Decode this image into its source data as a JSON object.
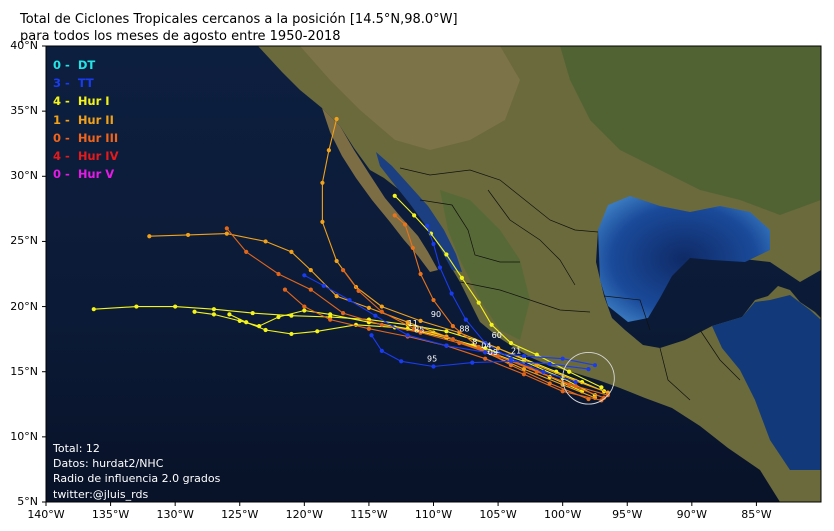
{
  "title": {
    "line1": "Total de Ciclones Tropicales cercanos a la posición [14.5°N,98.0°W]",
    "line2": "para todos los meses de agosto entre 1950-2018"
  },
  "axes": {
    "lon_range": [
      -140,
      -80
    ],
    "lat_range": [
      5,
      40
    ],
    "lat_ticks": [
      {
        "value": 40,
        "label": "40°N"
      },
      {
        "value": 35,
        "label": "35°N"
      },
      {
        "value": 30,
        "label": "30°N"
      },
      {
        "value": 25,
        "label": "25°N"
      },
      {
        "value": 20,
        "label": "20°N"
      },
      {
        "value": 15,
        "label": "15°N"
      },
      {
        "value": 10,
        "label": "10°N"
      },
      {
        "value": 5,
        "label": "5°N"
      }
    ],
    "lon_ticks": [
      {
        "value": -140,
        "label": "140°W"
      },
      {
        "value": -135,
        "label": "135°W"
      },
      {
        "value": -130,
        "label": "130°W"
      },
      {
        "value": -125,
        "label": "125°W"
      },
      {
        "value": -120,
        "label": "120°W"
      },
      {
        "value": -115,
        "label": "115°W"
      },
      {
        "value": -110,
        "label": "110°W"
      },
      {
        "value": -105,
        "label": "105°W"
      },
      {
        "value": -100,
        "label": "100°W"
      },
      {
        "value": -95,
        "label": "95°W"
      },
      {
        "value": -90,
        "label": "90°W"
      },
      {
        "value": -85,
        "label": "85°W"
      }
    ]
  },
  "legend": [
    {
      "count": "0",
      "label": "DT",
      "color": "#22e6e6"
    },
    {
      "count": "3",
      "label": "TT",
      "color": "#1a3cf0"
    },
    {
      "count": "4",
      "label": "Hur I",
      "color": "#f4f41a"
    },
    {
      "count": "1",
      "label": "Hur II",
      "color": "#f2a21a"
    },
    {
      "count": "0",
      "label": "Hur III",
      "color": "#f2641a"
    },
    {
      "count": "4",
      "label": "Hur IV",
      "color": "#e61a1a"
    },
    {
      "count": "0",
      "label": "Hur V",
      "color": "#e61ae6"
    }
  ],
  "info": {
    "total": "Total: 12",
    "source": "Datos: hurdat2/NHC",
    "radius": "Radio de influencia 2.0 grados",
    "credit": "twitter:@jluis_rds"
  },
  "influence_circle": {
    "lon": -98.0,
    "lat": 14.5,
    "radius_deg": 2.0
  },
  "track_labels": [
    {
      "text": "90",
      "lon": -110.2,
      "lat": 19.2
    },
    {
      "text": "11",
      "lon": -112.0,
      "lat": 18.5
    },
    {
      "text": "85",
      "lon": -111.5,
      "lat": 18.0
    },
    {
      "text": "88",
      "lon": -108.0,
      "lat": 18.1
    },
    {
      "text": "60",
      "lon": -105.5,
      "lat": 17.6
    },
    {
      "text": "8",
      "lon": -107.0,
      "lat": 17.1
    },
    {
      "text": "04",
      "lon": -106.3,
      "lat": 16.8
    },
    {
      "text": "09",
      "lon": -105.8,
      "lat": 16.3
    },
    {
      "text": "21",
      "lon": -104.0,
      "lat": 16.4
    },
    {
      "text": "95",
      "lon": -110.5,
      "lat": 15.8
    }
  ],
  "tracks": [
    {
      "id": "yellow-west-long",
      "color": "#f4f41a",
      "points": [
        [
          -96.8,
          13.5
        ],
        [
          -98.5,
          14.2
        ],
        [
          -100.5,
          15.0
        ],
        [
          -103,
          16.0
        ],
        [
          -106,
          17.2
        ],
        [
          -109,
          18.1
        ],
        [
          -112,
          18.6
        ],
        [
          -115,
          19.0
        ],
        [
          -118,
          19.2
        ],
        [
          -121,
          19.3
        ],
        [
          -124,
          19.5
        ],
        [
          -127,
          19.8
        ],
        [
          -130,
          20.0
        ],
        [
          -133,
          20.0
        ],
        [
          -136.3,
          19.8
        ]
      ]
    },
    {
      "id": "yellow-loop",
      "color": "#f4f41a",
      "points": [
        [
          -97.5,
          13.2
        ],
        [
          -100,
          14.5
        ],
        [
          -103,
          15.8
        ],
        [
          -106,
          16.8
        ],
        [
          -109,
          17.6
        ],
        [
          -112,
          18.3
        ],
        [
          -115,
          18.8
        ],
        [
          -118,
          19.4
        ],
        [
          -120,
          19.7
        ],
        [
          -122,
          19.2
        ],
        [
          -123.5,
          18.5
        ],
        [
          -125,
          18.9
        ],
        [
          -127,
          19.4
        ],
        [
          -128.5,
          19.6
        ]
      ]
    },
    {
      "id": "yellow-south-loop",
      "color": "#f4f41a",
      "points": [
        [
          -98.5,
          13.5
        ],
        [
          -101,
          14.6
        ],
        [
          -104,
          15.9
        ],
        [
          -107,
          17.0
        ],
        [
          -110,
          18.0
        ],
        [
          -113,
          18.4
        ],
        [
          -116,
          18.6
        ],
        [
          -119,
          18.1
        ],
        [
          -121,
          17.9
        ],
        [
          -123,
          18.2
        ],
        [
          -124.5,
          18.8
        ],
        [
          -125.8,
          19.4
        ]
      ]
    },
    {
      "id": "yellow-baja",
      "color": "#f4f41a",
      "points": [
        [
          -97.0,
          13.8
        ],
        [
          -99.5,
          15.0
        ],
        [
          -102,
          16.3
        ],
        [
          -104,
          17.2
        ],
        [
          -105.5,
          18.6
        ],
        [
          -106.5,
          20.3
        ],
        [
          -107.8,
          22.2
        ],
        [
          -109.0,
          24.0
        ],
        [
          -110.2,
          25.6
        ],
        [
          -111.5,
          27.0
        ],
        [
          -113.0,
          28.5
        ]
      ]
    },
    {
      "id": "orange-north",
      "color": "#f2a21a",
      "points": [
        [
          -96.5,
          13.4
        ],
        [
          -99,
          14.3
        ],
        [
          -102,
          15.5
        ],
        [
          -105,
          16.8
        ],
        [
          -108,
          18.0
        ],
        [
          -111,
          18.9
        ],
        [
          -114,
          20.0
        ],
        [
          -116,
          21.5
        ],
        [
          -117.5,
          23.5
        ],
        [
          -118.6,
          26.5
        ],
        [
          -118.6,
          29.5
        ],
        [
          -118.1,
          32.0
        ],
        [
          -117.5,
          34.4
        ]
      ]
    },
    {
      "id": "orange-west",
      "color": "#f2a21a",
      "points": [
        [
          -97.5,
          13.0
        ],
        [
          -100,
          14.0
        ],
        [
          -103,
          15.2
        ],
        [
          -106,
          16.5
        ],
        [
          -109,
          17.7
        ],
        [
          -112,
          18.8
        ],
        [
          -115,
          19.9
        ],
        [
          -117.5,
          20.8
        ],
        [
          -119.5,
          22.8
        ],
        [
          -121,
          24.2
        ],
        [
          -123,
          25.0
        ],
        [
          -126,
          25.6
        ],
        [
          -129,
          25.5
        ],
        [
          -132,
          25.4
        ]
      ]
    },
    {
      "id": "orange-gulf",
      "color": "#e8731a",
      "points": [
        [
          -98.0,
          12.9
        ],
        [
          -101,
          14.1
        ],
        [
          -104,
          15.5
        ],
        [
          -106.5,
          16.9
        ],
        [
          -108.5,
          18.5
        ],
        [
          -110.0,
          20.5
        ],
        [
          -111.0,
          22.5
        ],
        [
          -111.6,
          24.5
        ],
        [
          -112.2,
          26.3
        ],
        [
          -113.0,
          27.0
        ]
      ]
    },
    {
      "id": "red-long",
      "color": "#e2661a",
      "points": [
        [
          -96.5,
          13.2
        ],
        [
          -99,
          13.9
        ],
        [
          -102,
          15.0
        ],
        [
          -105,
          16.2
        ],
        [
          -108,
          17.2
        ],
        [
          -111,
          18.0
        ],
        [
          -114,
          18.6
        ],
        [
          -117,
          19.5
        ],
        [
          -119.5,
          21.3
        ],
        [
          -122,
          22.5
        ],
        [
          -124.5,
          24.2
        ],
        [
          -126.0,
          26.0
        ]
      ]
    },
    {
      "id": "red-mid",
      "color": "#e2661a",
      "points": [
        [
          -97,
          12.8
        ],
        [
          -100,
          13.5
        ],
        [
          -103,
          14.8
        ],
        [
          -106,
          16.0
        ],
        [
          -109,
          17.0
        ],
        [
          -112,
          17.7
        ],
        [
          -115,
          18.3
        ],
        [
          -118,
          19.0
        ],
        [
          -120,
          20.0
        ],
        [
          -121.5,
          21.3
        ]
      ]
    },
    {
      "id": "red-coast",
      "color": "#e2661a",
      "points": [
        [
          -96.8,
          13.0
        ],
        [
          -99.5,
          14.0
        ],
        [
          -102.5,
          15.3
        ],
        [
          -105.5,
          16.4
        ],
        [
          -108.5,
          17.5
        ],
        [
          -111.5,
          18.3
        ],
        [
          -114.0,
          19.6
        ],
        [
          -115.8,
          21.2
        ],
        [
          -117.0,
          22.8
        ]
      ]
    },
    {
      "id": "blue-baja",
      "color": "#1a3cf0",
      "points": [
        [
          -99.0,
          14.2
        ],
        [
          -101.5,
          15.0
        ],
        [
          -104.0,
          16.0
        ],
        [
          -106.0,
          17.2
        ],
        [
          -107.5,
          19.0
        ],
        [
          -108.6,
          21.0
        ],
        [
          -109.5,
          23.0
        ],
        [
          -110.0,
          24.8
        ],
        [
          -110.5,
          26.2
        ]
      ]
    },
    {
      "id": "blue-west",
      "color": "#1a3cf0",
      "points": [
        [
          -97.5,
          15.5
        ],
        [
          -100,
          16.0
        ],
        [
          -103,
          16.2
        ],
        [
          -106,
          16.5
        ],
        [
          -109,
          17.0
        ],
        [
          -112,
          17.8
        ],
        [
          -114.5,
          19.3
        ],
        [
          -116.5,
          20.5
        ],
        [
          -118.5,
          21.6
        ],
        [
          -120,
          22.4
        ]
      ]
    },
    {
      "id": "blue-south",
      "color": "#1a3cf0",
      "points": [
        [
          -98.0,
          15.2
        ],
        [
          -101,
          15.6
        ],
        [
          -104,
          15.8
        ],
        [
          -107,
          15.7
        ],
        [
          -110,
          15.4
        ],
        [
          -112.5,
          15.8
        ],
        [
          -114,
          16.6
        ],
        [
          -114.8,
          17.8
        ]
      ]
    }
  ]
}
